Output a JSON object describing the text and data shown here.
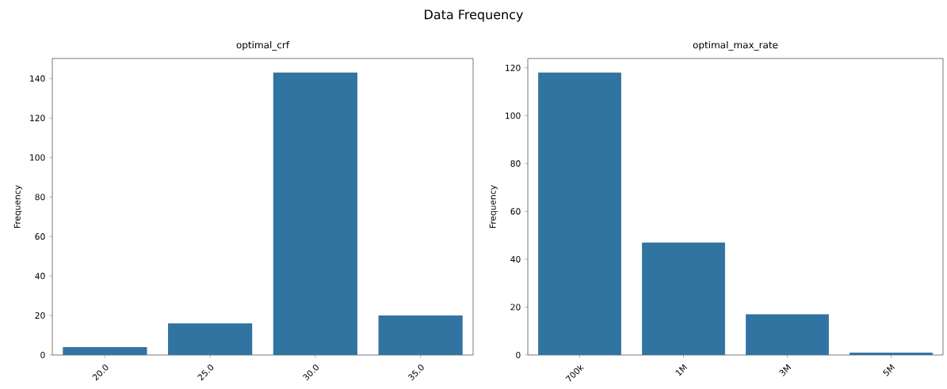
{
  "chart_data": [
    {
      "type": "bar",
      "title": "optimal_crf",
      "ylabel": "Frequency",
      "categories": [
        "20.0",
        "25.0",
        "30.0",
        "35.0"
      ],
      "values": [
        4,
        16,
        143,
        20
      ],
      "color": "#3274a1",
      "ylim": [
        0,
        150.15
      ],
      "yticks": [
        0,
        20,
        40,
        60,
        80,
        100,
        120,
        140
      ],
      "annotations": [
        "Data Frequency"
      ]
    },
    {
      "type": "bar",
      "title": "optimal_max_rate",
      "ylabel": "Frequency",
      "categories": [
        "700k",
        "1M",
        "3M",
        "5M"
      ],
      "values": [
        118,
        47,
        17,
        1
      ],
      "color": "#3274a1",
      "ylim": [
        0,
        123.9
      ],
      "yticks": [
        0,
        20,
        40,
        60,
        80,
        100,
        120
      ]
    }
  ]
}
